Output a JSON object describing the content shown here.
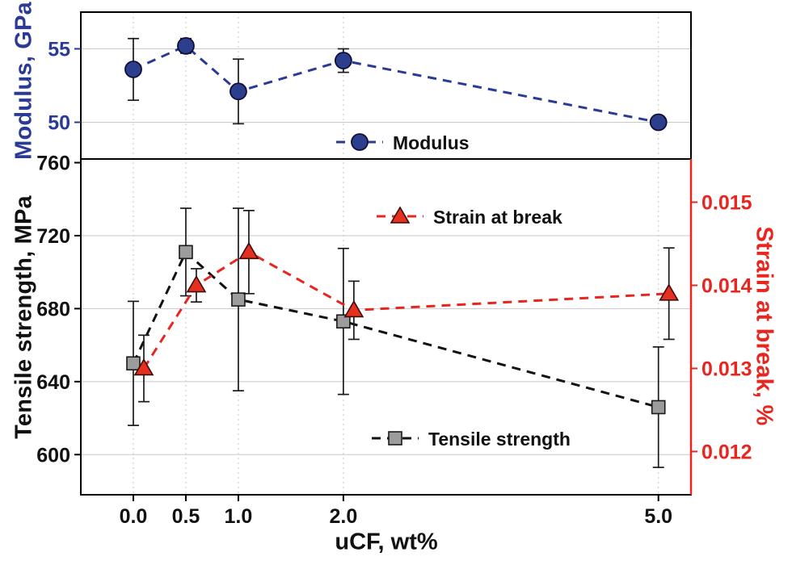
{
  "chart_data": {
    "type": "line",
    "title": "",
    "xlabel": "uCF, wt%",
    "xlim": [
      -0.5,
      5.31
    ],
    "x_ticks": [
      0.0,
      0.5,
      1.0,
      2.0,
      5.0
    ],
    "x_tick_labels": [
      "0.0",
      "0.5",
      "1.0",
      "2.0",
      "5.0"
    ],
    "grid": "on",
    "colors": {
      "blue": "#2a3b96",
      "blue_marker_fill": "#2c3f8f",
      "red": "#e8251f",
      "red_marker_fill": "#e53020",
      "black": "#111111",
      "gray_marker_fill": "#9c9c9c",
      "gridline": "#c9c9c9",
      "errorbar": "#1a1a1a"
    },
    "top_panel": {
      "ylabel": "Modulus, GPa",
      "ylim": [
        47.5,
        57.5
      ],
      "y_ticks": [
        50,
        55
      ],
      "y_tick_labels": [
        "50",
        "55"
      ],
      "series": {
        "name": "Modulus",
        "marker": "circle",
        "x": [
          0.0,
          0.5,
          1.0,
          2.0,
          5.0
        ],
        "y": [
          53.6,
          55.2,
          52.1,
          54.2,
          50.0
        ],
        "yerr": [
          2.1,
          0.5,
          2.2,
          0.8,
          0.35
        ]
      }
    },
    "bottom_panel": {
      "left": {
        "ylabel": "Tensile strength, MPa",
        "ylim": [
          578,
          762
        ],
        "y_ticks": [
          600,
          640,
          680,
          720,
          760
        ],
        "y_tick_labels": [
          "600",
          "640",
          "680",
          "720",
          "760"
        ],
        "series": {
          "name": "Tensile strength",
          "marker": "square",
          "x": [
            0.0,
            0.5,
            1.0,
            2.0,
            5.0
          ],
          "y": [
            650,
            711,
            685,
            673,
            626
          ],
          "yerr": [
            34,
            24,
            50,
            40,
            33
          ]
        }
      },
      "right": {
        "ylabel": "Strain at break, %",
        "ylim": [
          0.01148,
          0.01552
        ],
        "y_ticks": [
          0.012,
          0.013,
          0.014,
          0.015
        ],
        "y_tick_labels": [
          "0.012",
          "0.013",
          "0.014",
          "0.015"
        ],
        "series": {
          "name": "Strain at break",
          "marker": "triangle",
          "x": [
            0.1,
            0.6,
            1.1,
            2.1,
            5.1
          ],
          "y": [
            0.013,
            0.014,
            0.0144,
            0.0137,
            0.0139
          ],
          "yerr": [
            0.0004,
            0.0002,
            0.0005,
            0.00035,
            0.00055
          ]
        }
      }
    },
    "legend": {
      "position": "inside",
      "entries": [
        "Modulus",
        "Strain at break",
        "Tensile strength"
      ]
    }
  }
}
